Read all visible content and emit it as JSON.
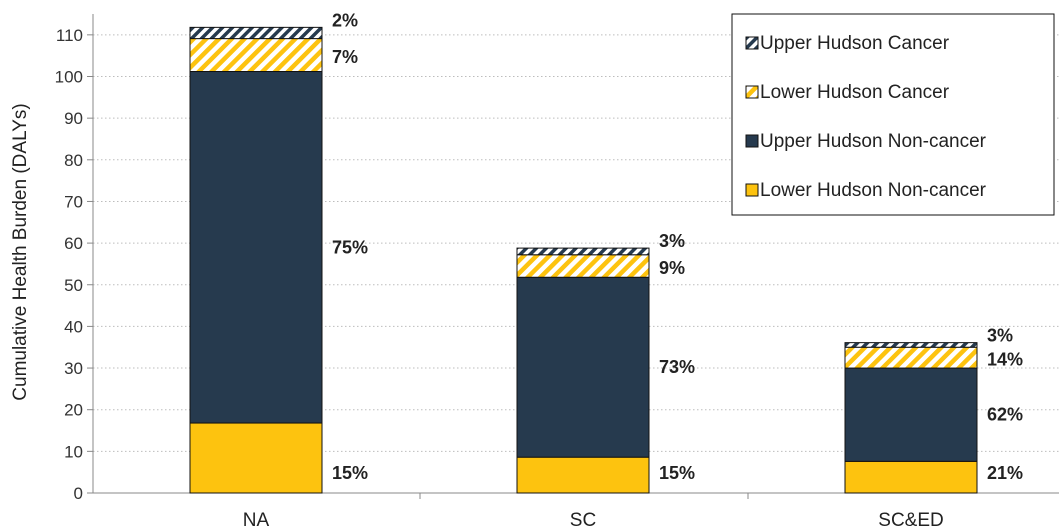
{
  "chart_data": {
    "type": "bar",
    "stacked": true,
    "categories": [
      "NA",
      "SC",
      "SC&ED"
    ],
    "ylabel": "Cumulative Health Burden (DALYs)",
    "xlabel": "",
    "ylim": [
      0,
      115
    ],
    "yticks": [
      0,
      10,
      20,
      30,
      40,
      50,
      60,
      70,
      80,
      90,
      100,
      110
    ],
    "grid": "horizontal",
    "legend_position": "top-right",
    "series": [
      {
        "name": "Lower Hudson Non-cancer",
        "values": [
          16.8,
          8.6,
          7.6
        ],
        "labels": [
          "15%",
          "15%",
          "21%"
        ],
        "color": "#FDC30F",
        "pattern": "solid"
      },
      {
        "name": "Upper Hudson Non-cancer",
        "values": [
          84.4,
          43.2,
          22.4
        ],
        "labels": [
          "75%",
          "73%",
          "62%"
        ],
        "color": "#263A4E",
        "pattern": "solid"
      },
      {
        "name": "Lower Hudson Cancer",
        "values": [
          7.9,
          5.4,
          5.0
        ],
        "labels": [
          "7%",
          "9%",
          "14%"
        ],
        "color": "#FDC30F",
        "pattern": "hatch"
      },
      {
        "name": "Upper Hudson Cancer",
        "values": [
          2.7,
          1.6,
          1.1
        ],
        "labels": [
          "2%",
          "3%",
          "3%"
        ],
        "color": "#263A4E",
        "pattern": "hatch"
      }
    ]
  }
}
